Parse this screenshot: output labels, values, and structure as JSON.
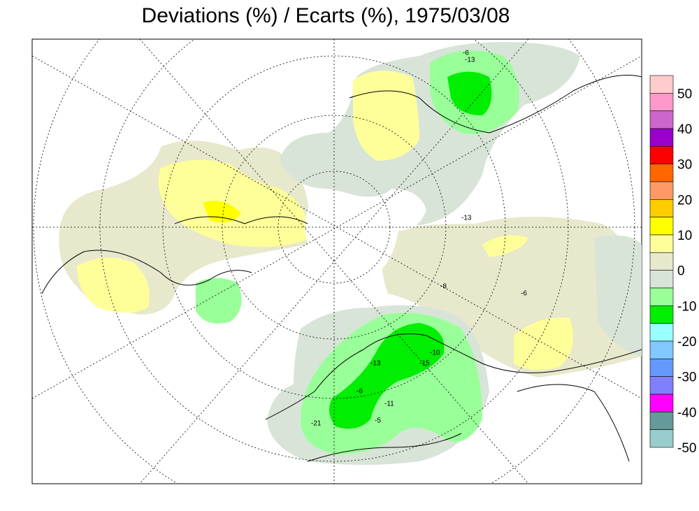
{
  "title": "Deviations (%) / Ecarts (%), 1975/03/08",
  "colorbar": {
    "colors": [
      "#ffcccc",
      "#ff99cc",
      "#cc66cc",
      "#9900cc",
      "#ff0000",
      "#ff6600",
      "#ff9966",
      "#ffcc00",
      "#ffff00",
      "#ffff99",
      "#e8e8cc",
      "#d8e4d8",
      "#99ff99",
      "#00ee00",
      "#99ffff",
      "#80c8ff",
      "#6699ff",
      "#8080ff",
      "#ff00ff",
      "#669999",
      "#99cccc"
    ],
    "labels": [
      50,
      40,
      30,
      20,
      10,
      0,
      -10,
      -20,
      -30,
      -40,
      -50
    ]
  },
  "map_labels": [
    -6,
    -13,
    -10,
    -11,
    -5,
    -21,
    -13,
    -15,
    -6,
    -8,
    -6,
    -13
  ]
}
